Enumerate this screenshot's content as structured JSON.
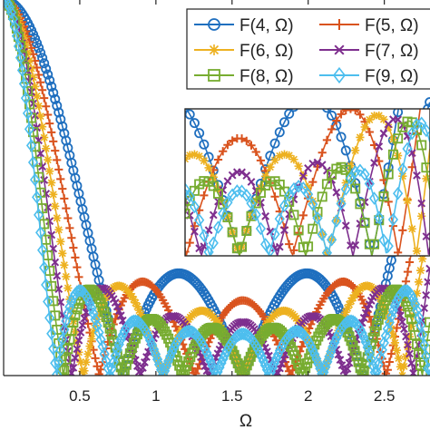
{
  "chart_data": {
    "type": "line",
    "title": "",
    "xlabel": "Ω",
    "ylabel": "",
    "xlim": [
      0,
      2.8
    ],
    "ylim": [
      0,
      1
    ],
    "xticks": [
      "0.5",
      "1",
      "1.5",
      "2",
      "2.5"
    ],
    "grid": false,
    "legend_position": "top-right",
    "series": [
      {
        "name": "F(4, Ω)",
        "n": 4,
        "color": "#1f6fbf",
        "marker": "circle"
      },
      {
        "name": "F(5, Ω)",
        "n": 5,
        "color": "#d9531e",
        "marker": "plus"
      },
      {
        "name": "F(6, Ω)",
        "n": 6,
        "color": "#edb120",
        "marker": "asterisk"
      },
      {
        "name": "F(7, Ω)",
        "n": 7,
        "color": "#7e2f8e",
        "marker": "x"
      },
      {
        "name": "F(8, Ω)",
        "n": 8,
        "color": "#77ac30",
        "marker": "square"
      },
      {
        "name": "F(9, Ω)",
        "n": 9,
        "color": "#4dbeee",
        "marker": "diamond"
      }
    ],
    "inset": {
      "xlim": [
        1.25,
        2.7
      ],
      "ylim": [
        0,
        0.25
      ]
    }
  }
}
